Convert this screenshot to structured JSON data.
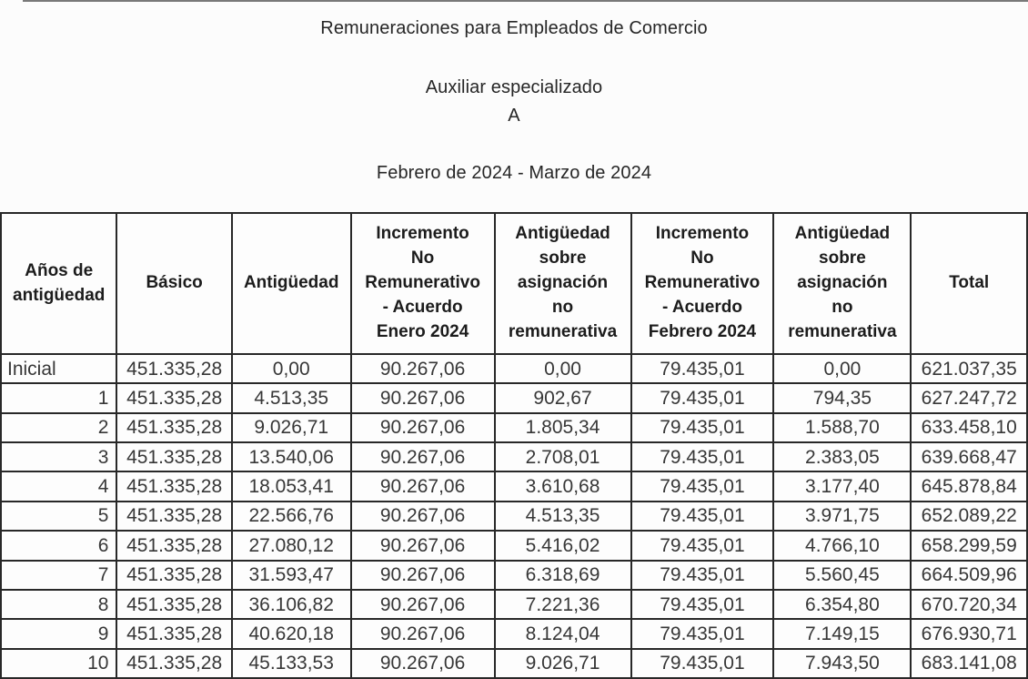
{
  "page": {
    "title": "Remuneraciones para Empleados de Comercio",
    "subtitle": "Auxiliar especializado",
    "category": "A",
    "period": "Febrero de 2024 - Marzo de 2024"
  },
  "table": {
    "columns": [
      {
        "label": "Años de\nantigüedad"
      },
      {
        "label": "Básico"
      },
      {
        "label": "Antigüedad"
      },
      {
        "label": "Incremento\nNo\nRemunerativo\n- Acuerdo\nEnero 2024"
      },
      {
        "label": "Antigüedad\nsobre\nasignación\nno\nremunerativa"
      },
      {
        "label": "Incremento\nNo\nRemunerativo\n- Acuerdo\nFebrero 2024"
      },
      {
        "label": "Antigüedad\nsobre\nasignación\nno\nremunerativa"
      },
      {
        "label": "Total"
      }
    ],
    "rows": [
      {
        "label": "Inicial",
        "values": [
          "451.335,28",
          "0,00",
          "90.267,06",
          "0,00",
          "79.435,01",
          "0,00",
          "621.037,35"
        ]
      },
      {
        "label": "1",
        "values": [
          "451.335,28",
          "4.513,35",
          "90.267,06",
          "902,67",
          "79.435,01",
          "794,35",
          "627.247,72"
        ]
      },
      {
        "label": "2",
        "values": [
          "451.335,28",
          "9.026,71",
          "90.267,06",
          "1.805,34",
          "79.435,01",
          "1.588,70",
          "633.458,10"
        ]
      },
      {
        "label": "3",
        "values": [
          "451.335,28",
          "13.540,06",
          "90.267,06",
          "2.708,01",
          "79.435,01",
          "2.383,05",
          "639.668,47"
        ]
      },
      {
        "label": "4",
        "values": [
          "451.335,28",
          "18.053,41",
          "90.267,06",
          "3.610,68",
          "79.435,01",
          "3.177,40",
          "645.878,84"
        ]
      },
      {
        "label": "5",
        "values": [
          "451.335,28",
          "22.566,76",
          "90.267,06",
          "4.513,35",
          "79.435,01",
          "3.971,75",
          "652.089,22"
        ]
      },
      {
        "label": "6",
        "values": [
          "451.335,28",
          "27.080,12",
          "90.267,06",
          "5.416,02",
          "79.435,01",
          "4.766,10",
          "658.299,59"
        ]
      },
      {
        "label": "7",
        "values": [
          "451.335,28",
          "31.593,47",
          "90.267,06",
          "6.318,69",
          "79.435,01",
          "5.560,45",
          "664.509,96"
        ]
      },
      {
        "label": "8",
        "values": [
          "451.335,28",
          "36.106,82",
          "90.267,06",
          "7.221,36",
          "79.435,01",
          "6.354,80",
          "670.720,34"
        ]
      },
      {
        "label": "9",
        "values": [
          "451.335,28",
          "40.620,18",
          "90.267,06",
          "8.124,04",
          "79.435,01",
          "7.149,15",
          "676.930,71"
        ]
      },
      {
        "label": "10",
        "values": [
          "451.335,28",
          "45.133,53",
          "90.267,06",
          "9.026,71",
          "79.435,01",
          "7.943,50",
          "683.141,08"
        ]
      }
    ]
  },
  "colors": {
    "background": "#fcfcfc",
    "border": "#282828",
    "header_text": "#1c1c1c",
    "body_text": "#373737"
  }
}
